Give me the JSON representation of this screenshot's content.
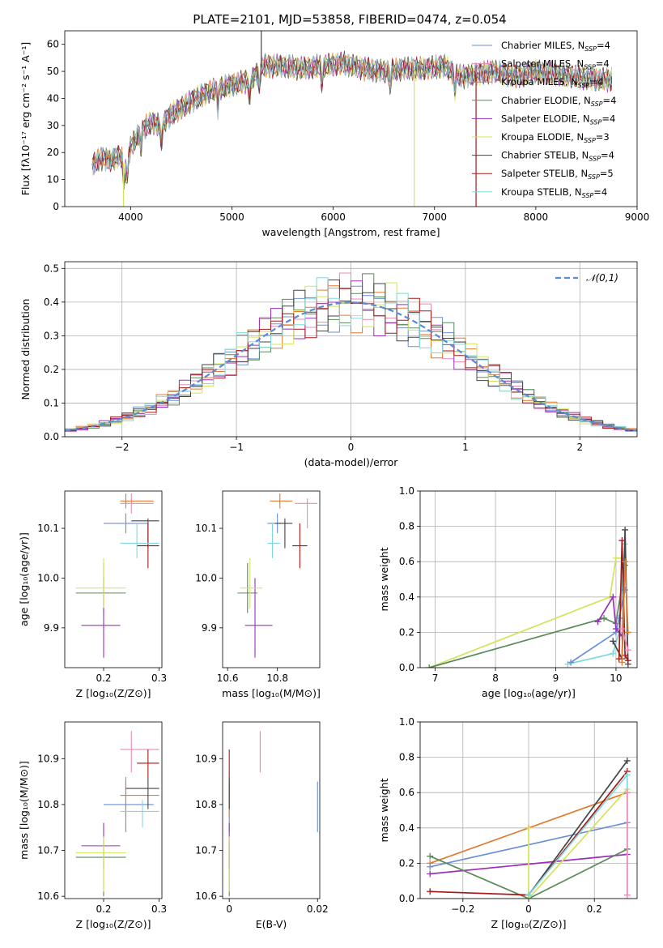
{
  "figure_title": "PLATE=2101, MJD=53858, FIBERID=0474, z=0.054",
  "colors": {
    "chabrier_miles": "#6a8fd6",
    "salpeter_miles": "#e88ab5",
    "kroupa_miles": "#e07b2f",
    "chabrier_elodie": "#5a8a5a",
    "salpeter_elodie": "#9b30b8",
    "kroupa_elodie": "#d4e35a",
    "chabrier_stelib": "#444444",
    "salpeter_stelib": "#a81818",
    "kroupa_stelib": "#80d8dc",
    "normal_curve": "#5b8bd6",
    "grid": "#b0b0b0"
  },
  "chart_data": [
    {
      "type": "line",
      "id": "spectrum",
      "xlabel": "wavelength [Angstrom, rest frame]",
      "ylabel": "Flux [fλ10⁻¹⁷ erg cm⁻² s⁻¹ A⁻¹]",
      "xlim": [
        3350,
        9000
      ],
      "ylim": [
        0,
        65
      ],
      "xticks": [
        4000,
        5000,
        6000,
        7000,
        8000,
        9000
      ],
      "yticks": [
        0,
        10,
        20,
        30,
        40,
        50,
        60
      ],
      "legend_position": "upper-right",
      "series": [
        {
          "name": "Chabrier MILES, N_SSP=4",
          "key": "chabrier_miles"
        },
        {
          "name": "Salpeter MILES, N_SSP=4",
          "key": "salpeter_miles"
        },
        {
          "name": "Kroupa MILES, N_SSP=4",
          "key": "kroupa_miles"
        },
        {
          "name": "Chabrier ELODIE, N_SSP=4",
          "key": "chabrier_elodie"
        },
        {
          "name": "Salpeter ELODIE, N_SSP=4",
          "key": "salpeter_elodie"
        },
        {
          "name": "Kroupa ELODIE, N_SSP=3",
          "key": "kroupa_elodie"
        },
        {
          "name": "Chabrier STELIB, N_SSP=4",
          "key": "chabrier_stelib"
        },
        {
          "name": "Salpeter STELIB, N_SSP=5",
          "key": "salpeter_stelib"
        },
        {
          "name": "Kroupa STELIB, N_SSP=4",
          "key": "kroupa_stelib"
        }
      ],
      "continuum": {
        "x": [
          3620,
          3700,
          3800,
          3900,
          3950,
          4000,
          4100,
          4200,
          4300,
          4400,
          4600,
          4800,
          5000,
          5200,
          5300,
          5500,
          5700,
          5900,
          6100,
          6300,
          6500,
          6700,
          6900,
          7100,
          7200,
          7300,
          7400,
          7600,
          7800,
          8000,
          8200,
          8400,
          8600,
          8750
        ],
        "y": [
          15,
          18,
          17,
          19,
          14,
          22,
          28,
          31,
          30,
          34,
          39,
          43,
          45,
          47,
          52,
          52,
          51,
          52,
          53,
          51,
          50,
          51,
          51,
          52,
          49,
          48,
          49,
          50,
          48,
          50,
          49,
          48,
          47,
          47
        ]
      },
      "dropouts": [
        {
          "x": 3930,
          "y": 0,
          "key": "kroupa_elodie"
        },
        {
          "x": 6800,
          "y": 0,
          "key": "kroupa_elodie"
        },
        {
          "x": 7410,
          "y": 0,
          "key": "salpeter_stelib"
        },
        {
          "x": 5290,
          "y": 65,
          "key": "chabrier_stelib"
        }
      ]
    },
    {
      "type": "step",
      "id": "residuals",
      "xlabel": "(data-model)/error",
      "ylabel": "Normed distribution",
      "xlim": [
        -2.5,
        2.5
      ],
      "ylim": [
        0,
        0.52
      ],
      "xticks": [
        -2,
        -1,
        0,
        1,
        2
      ],
      "yticks": [
        0.0,
        0.1,
        0.2,
        0.3,
        0.4,
        0.5
      ],
      "grid": true,
      "legend_position": "upper-right",
      "reference": {
        "name": "𝒩(0,1)",
        "key": "normal_curve"
      }
    },
    {
      "type": "scatter",
      "id": "age_vs_z",
      "xlabel": "Z [log₁₀(Z/Z⊙)]",
      "ylabel": "age  [log₁₀(age/yr)]",
      "xlim": [
        0.13,
        0.305
      ],
      "ylim": [
        9.82,
        10.175
      ],
      "xticks": [
        0.2,
        0.3
      ],
      "yticks": [
        9.9,
        10.0,
        10.1
      ],
      "points": [
        {
          "x": 0.24,
          "y": 10.11,
          "xerr": [
            0.2,
            0.28
          ],
          "yerr": [
            10.09,
            10.13
          ],
          "key": "chabrier_miles"
        },
        {
          "x": 0.25,
          "y": 10.15,
          "xerr": [
            0.23,
            0.29
          ],
          "yerr": [
            10.13,
            10.17
          ],
          "key": "salpeter_miles"
        },
        {
          "x": 0.24,
          "y": 10.155,
          "xerr": [
            0.23,
            0.29
          ],
          "yerr": [
            10.14,
            10.17
          ],
          "key": "kroupa_miles"
        },
        {
          "x": 0.2,
          "y": 9.97,
          "xerr": [
            0.15,
            0.24
          ],
          "yerr": [
            9.93,
            10.03
          ],
          "key": "chabrier_elodie"
        },
        {
          "x": 0.2,
          "y": 9.905,
          "xerr": [
            0.16,
            0.23
          ],
          "yerr": [
            9.84,
            10.0
          ],
          "key": "salpeter_elodie"
        },
        {
          "x": 0.2,
          "y": 9.98,
          "xerr": [
            0.15,
            0.24
          ],
          "yerr": [
            9.94,
            10.04
          ],
          "key": "kroupa_elodie"
        },
        {
          "x": 0.28,
          "y": 10.115,
          "xerr": [
            0.25,
            0.3
          ],
          "yerr": [
            10.06,
            10.12
          ],
          "key": "chabrier_stelib"
        },
        {
          "x": 0.28,
          "y": 10.065,
          "xerr": [
            0.26,
            0.3
          ],
          "yerr": [
            10.02,
            10.11
          ],
          "key": "salpeter_stelib"
        },
        {
          "x": 0.26,
          "y": 10.07,
          "xerr": [
            0.23,
            0.3
          ],
          "yerr": [
            10.04,
            10.11
          ],
          "key": "kroupa_stelib"
        }
      ]
    },
    {
      "type": "scatter",
      "id": "age_vs_mass",
      "xlabel": "mass [log₁₀(M/M⊙)]",
      "ylabel": "",
      "xlim": [
        10.58,
        10.97
      ],
      "ylim": [
        9.82,
        10.175
      ],
      "xticks": [
        10.6,
        10.8
      ],
      "yticks": [
        9.9,
        10.0,
        10.1
      ],
      "points": [
        {
          "x": 10.8,
          "y": 10.11,
          "xerr": [
            10.76,
            10.84
          ],
          "yerr": [
            10.09,
            10.13
          ],
          "key": "chabrier_miles"
        },
        {
          "x": 10.92,
          "y": 10.15,
          "xerr": [
            10.87,
            10.96
          ],
          "yerr": [
            10.1,
            10.16
          ],
          "key": "salpeter_miles"
        },
        {
          "x": 10.81,
          "y": 10.155,
          "xerr": [
            10.77,
            10.86
          ],
          "yerr": [
            10.14,
            10.17
          ],
          "key": "kroupa_miles"
        },
        {
          "x": 10.68,
          "y": 9.97,
          "xerr": [
            10.64,
            10.72
          ],
          "yerr": [
            9.93,
            10.03
          ],
          "key": "chabrier_elodie"
        },
        {
          "x": 10.71,
          "y": 9.905,
          "xerr": [
            10.67,
            10.78
          ],
          "yerr": [
            9.84,
            10.0
          ],
          "key": "salpeter_elodie"
        },
        {
          "x": 10.69,
          "y": 9.98,
          "xerr": [
            10.65,
            10.74
          ],
          "yerr": [
            9.94,
            10.04
          ],
          "key": "kroupa_elodie"
        },
        {
          "x": 10.83,
          "y": 10.11,
          "xerr": [
            10.79,
            10.86
          ],
          "yerr": [
            10.06,
            10.12
          ],
          "key": "chabrier_stelib"
        },
        {
          "x": 10.89,
          "y": 10.065,
          "xerr": [
            10.86,
            10.92
          ],
          "yerr": [
            10.02,
            10.11
          ],
          "key": "salpeter_stelib"
        },
        {
          "x": 10.78,
          "y": 10.07,
          "xerr": [
            10.76,
            10.81
          ],
          "yerr": [
            10.04,
            10.11
          ],
          "key": "kroupa_stelib"
        }
      ]
    },
    {
      "type": "line",
      "id": "weight_vs_age",
      "xlabel": "age  [log₁₀(age/yr)]",
      "ylabel": "mass weight",
      "xlim": [
        6.75,
        10.35
      ],
      "ylim": [
        0,
        1.0
      ],
      "xticks": [
        7,
        8,
        9,
        10
      ],
      "yticks": [
        0.0,
        0.2,
        0.4,
        0.6,
        0.8,
        1.0
      ],
      "grid": true,
      "series": [
        {
          "key": "kroupa_elodie",
          "x": [
            6.9,
            9.9,
            10.0,
            10.1
          ],
          "y": [
            0.0,
            0.4,
            0.62,
            0.62
          ]
        },
        {
          "key": "chabrier_elodie",
          "x": [
            6.9,
            9.8,
            10.0,
            10.15
          ],
          "y": [
            0.0,
            0.28,
            0.25,
            0.58
          ]
        },
        {
          "key": "kroupa_stelib",
          "x": [
            9.2,
            9.95,
            10.05,
            10.15
          ],
          "y": [
            0.02,
            0.08,
            0.2,
            0.7
          ]
        },
        {
          "key": "chabrier_miles",
          "x": [
            9.25,
            10.0,
            10.05,
            10.15
          ],
          "y": [
            0.03,
            0.2,
            0.28,
            0.44
          ]
        },
        {
          "key": "salpeter_elodie",
          "x": [
            9.7,
            9.95,
            10.0,
            10.1
          ],
          "y": [
            0.26,
            0.4,
            0.22,
            0.18
          ]
        },
        {
          "key": "chabrier_stelib",
          "x": [
            9.95,
            10.1,
            10.15,
            10.2
          ],
          "y": [
            0.15,
            0.05,
            0.78,
            0.02
          ]
        },
        {
          "key": "salpeter_stelib",
          "x": [
            10.05,
            10.1,
            10.15,
            10.2
          ],
          "y": [
            0.05,
            0.72,
            0.07,
            0.04
          ]
        },
        {
          "key": "kroupa_miles",
          "x": [
            10.1,
            10.15,
            10.2
          ],
          "y": [
            0.03,
            0.6,
            0.2
          ]
        },
        {
          "key": "salpeter_miles",
          "x": [
            10.1,
            10.2
          ],
          "y": [
            0.22,
            0.1
          ]
        }
      ]
    },
    {
      "type": "scatter",
      "id": "mass_vs_z",
      "xlabel": "Z [log₁₀(Z/Z⊙)]",
      "ylabel": "mass [log₁₀(M/M⊙)]",
      "xlim": [
        0.13,
        0.305
      ],
      "ylim": [
        10.595,
        10.98
      ],
      "xticks": [
        0.2,
        0.3
      ],
      "yticks": [
        10.6,
        10.7,
        10.8,
        10.9
      ],
      "points": [
        {
          "x": 0.24,
          "y": 10.8,
          "xerr": [
            0.2,
            0.29
          ],
          "yerr": [
            10.74,
            10.85
          ],
          "key": "chabrier_miles"
        },
        {
          "x": 0.25,
          "y": 10.92,
          "xerr": [
            0.23,
            0.3
          ],
          "yerr": [
            10.87,
            10.96
          ],
          "key": "salpeter_miles"
        },
        {
          "x": 0.24,
          "y": 10.82,
          "xerr": [
            0.23,
            0.3
          ],
          "yerr": [
            10.77,
            10.86
          ],
          "key": "kroupa_miles"
        },
        {
          "x": 0.2,
          "y": 10.685,
          "xerr": [
            0.15,
            0.24
          ],
          "yerr": [
            10.6,
            10.72
          ],
          "key": "chabrier_elodie"
        },
        {
          "x": 0.2,
          "y": 10.71,
          "xerr": [
            0.16,
            0.23
          ],
          "yerr": [
            10.66,
            10.76
          ],
          "key": "salpeter_elodie"
        },
        {
          "x": 0.2,
          "y": 10.695,
          "xerr": [
            0.15,
            0.24
          ],
          "yerr": [
            10.61,
            10.73
          ],
          "key": "kroupa_elodie"
        },
        {
          "x": 0.28,
          "y": 10.835,
          "xerr": [
            0.24,
            0.3
          ],
          "yerr": [
            10.79,
            10.86
          ],
          "key": "chabrier_stelib"
        },
        {
          "x": 0.28,
          "y": 10.89,
          "xerr": [
            0.26,
            0.3
          ],
          "yerr": [
            10.86,
            10.92
          ],
          "key": "salpeter_stelib"
        },
        {
          "x": 0.27,
          "y": 10.785,
          "xerr": [
            0.23,
            0.3
          ],
          "yerr": [
            10.75,
            10.81
          ],
          "key": "kroupa_stelib"
        }
      ]
    },
    {
      "type": "scatter",
      "id": "mass_vs_ebv",
      "xlabel": "E(B-V)",
      "ylabel": "",
      "xlim": [
        -0.0015,
        0.0205
      ],
      "ylim": [
        10.595,
        10.98
      ],
      "xticks": [
        0.0,
        0.02
      ],
      "yticks": [
        10.6,
        10.7,
        10.8,
        10.9
      ],
      "points": [
        {
          "x": 0.0,
          "y": 10.8,
          "xerr": [
            0.0,
            0.0
          ],
          "yerr": [
            10.74,
            10.85
          ],
          "key": "chabrier_miles"
        },
        {
          "x": 0.007,
          "y": 10.92,
          "xerr": [
            0.007,
            0.007
          ],
          "yerr": [
            10.87,
            10.96
          ],
          "key": "salpeter_miles"
        },
        {
          "x": 0.0,
          "y": 10.82,
          "xerr": [
            0.0,
            0.0
          ],
          "yerr": [
            10.77,
            10.86
          ],
          "key": "kroupa_miles"
        },
        {
          "x": 0.0,
          "y": 10.685,
          "xerr": [
            0.0,
            0.0
          ],
          "yerr": [
            10.6,
            10.72
          ],
          "key": "chabrier_elodie"
        },
        {
          "x": 0.0,
          "y": 10.71,
          "xerr": [
            0.0,
            0.0
          ],
          "yerr": [
            10.66,
            10.76
          ],
          "key": "salpeter_elodie"
        },
        {
          "x": 0.0,
          "y": 10.695,
          "xerr": [
            0.0,
            0.0
          ],
          "yerr": [
            10.61,
            10.73
          ],
          "key": "kroupa_elodie"
        },
        {
          "x": 0.0,
          "y": 10.835,
          "xerr": [
            0.0,
            0.0
          ],
          "yerr": [
            10.79,
            10.86
          ],
          "key": "chabrier_stelib"
        },
        {
          "x": 0.0,
          "y": 10.89,
          "xerr": [
            0.0,
            0.0
          ],
          "yerr": [
            10.86,
            10.92
          ],
          "key": "salpeter_stelib"
        },
        {
          "x": 0.02,
          "y": 10.8,
          "xerr": [
            0.02,
            0.02
          ],
          "yerr": [
            10.74,
            10.85
          ],
          "key": "chabrier_miles"
        }
      ]
    },
    {
      "type": "line",
      "id": "weight_vs_z",
      "xlabel": "Z [log₁₀(Z/Z⊙)]",
      "ylabel": "mass weight",
      "xlim": [
        -0.33,
        0.33
      ],
      "ylim": [
        0,
        1.0
      ],
      "xticks": [
        -0.2,
        0.0,
        0.2
      ],
      "yticks": [
        0.0,
        0.2,
        0.4,
        0.6,
        0.8,
        1.0
      ],
      "grid": true,
      "series": [
        {
          "key": "kroupa_miles",
          "x": [
            -0.3,
            0.0,
            0.0,
            0.3
          ],
          "y": [
            0.2,
            0.4,
            0.4,
            0.6
          ]
        },
        {
          "key": "chabrier_miles",
          "x": [
            -0.3,
            0.3
          ],
          "y": [
            0.18,
            0.43
          ]
        },
        {
          "key": "salpeter_elodie",
          "x": [
            -0.3,
            0.3
          ],
          "y": [
            0.14,
            0.25
          ]
        },
        {
          "key": "chabrier_elodie",
          "x": [
            -0.3,
            0.0,
            0.3
          ],
          "y": [
            0.24,
            0.0,
            0.28
          ]
        },
        {
          "key": "salpeter_stelib",
          "x": [
            -0.3,
            0.0,
            0.3
          ],
          "y": [
            0.04,
            0.02,
            0.72
          ]
        },
        {
          "key": "chabrier_stelib",
          "x": [
            0.0,
            0.3
          ],
          "y": [
            0.02,
            0.78
          ]
        },
        {
          "key": "kroupa_elodie",
          "x": [
            0.0,
            0.0,
            0.3
          ],
          "y": [
            0.4,
            0.0,
            0.62
          ]
        },
        {
          "key": "kroupa_stelib",
          "x": [
            0.0,
            0.3,
            0.3
          ],
          "y": [
            0.02,
            0.7,
            0.02
          ]
        },
        {
          "key": "salpeter_miles",
          "x": [
            0.3,
            0.3
          ],
          "y": [
            0.02,
            0.6
          ]
        }
      ]
    }
  ]
}
